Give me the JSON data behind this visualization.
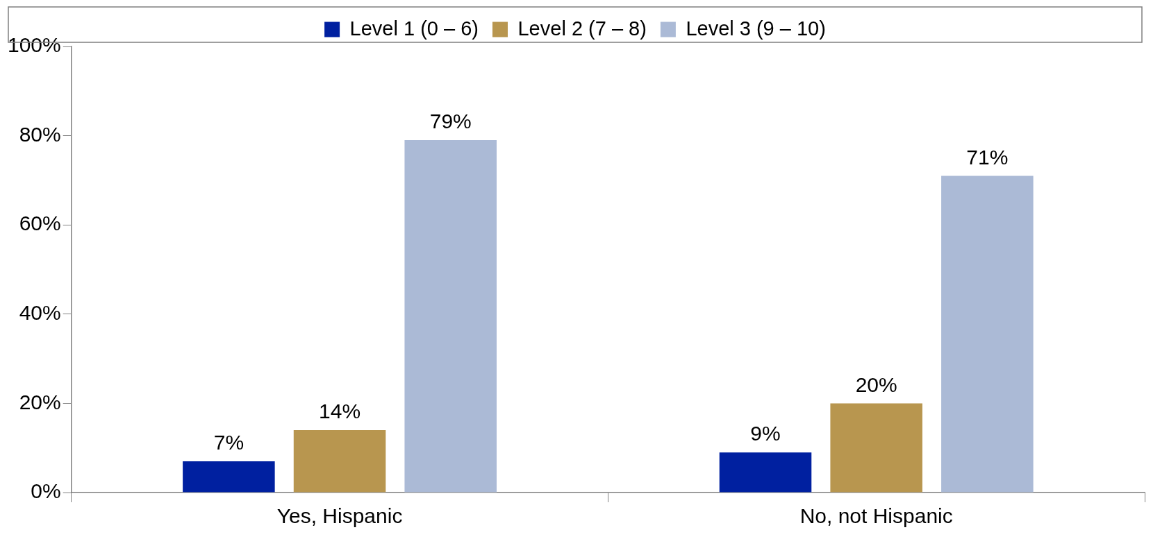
{
  "chart_data": {
    "type": "bar",
    "categories": [
      "Yes, Hispanic",
      "No, not Hispanic"
    ],
    "series": [
      {
        "name": "Level 1 (0 – 6)",
        "color": "#0020a0",
        "values": [
          7,
          9
        ],
        "value_labels": [
          "7%",
          "9%"
        ]
      },
      {
        "name": "Level 2 (7 – 8)",
        "color": "#b8964f",
        "values": [
          14,
          20
        ],
        "value_labels": [
          "14%",
          "20%"
        ]
      },
      {
        "name": "Level 3 (9 – 10)",
        "color": "#abbad6",
        "values": [
          79,
          71
        ],
        "value_labels": [
          "79%",
          "71%"
        ]
      }
    ],
    "ylim": [
      0,
      100
    ],
    "yticks": [
      {
        "value": 0,
        "label": "0%"
      },
      {
        "value": 20,
        "label": "20%"
      },
      {
        "value": 40,
        "label": "40%"
      },
      {
        "value": 60,
        "label": "60%"
      },
      {
        "value": 80,
        "label": "80%"
      },
      {
        "value": 100,
        "label": "100%"
      }
    ],
    "grid": false,
    "legend": "top"
  }
}
